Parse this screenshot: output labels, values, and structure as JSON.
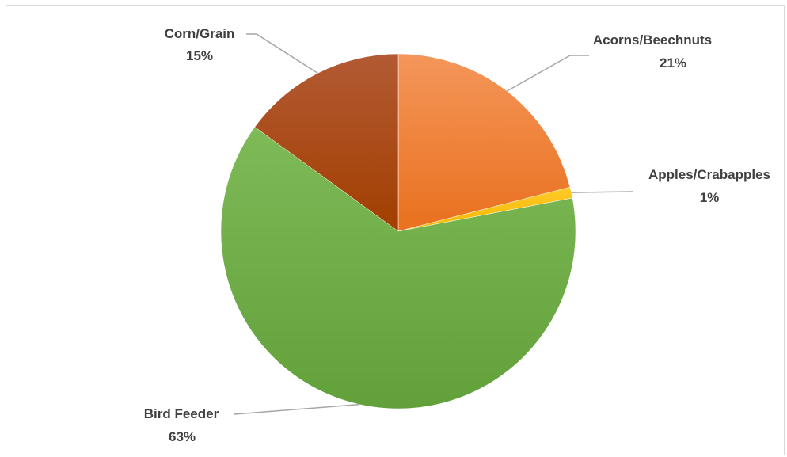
{
  "chart_data": {
    "type": "pie",
    "start_angle_deg": 0,
    "direction": "clockwise",
    "slices": [
      {
        "label": "Acorns/Beechnuts",
        "value": 21,
        "value_label": "21%",
        "color": "#ED7D31",
        "gradient": [
          "#F4965A",
          "#E9701E"
        ]
      },
      {
        "label": "Apples/Crabapples",
        "value": 1,
        "value_label": "1%",
        "color": "#FFC000",
        "gradient": [
          "#FFCA2A",
          "#F5B800"
        ]
      },
      {
        "label": "Bird Feeder",
        "value": 63,
        "value_label": "63%",
        "color": "#70AD47",
        "gradient": [
          "#7EBB58",
          "#62A03A"
        ]
      },
      {
        "label": "Corn/Grain",
        "value": 15,
        "value_label": "15%",
        "color": "#9E480E",
        "gradient": [
          "#B35A34",
          "#A23F00"
        ]
      }
    ],
    "legend": "none",
    "data_labels": "outside with leader lines"
  }
}
